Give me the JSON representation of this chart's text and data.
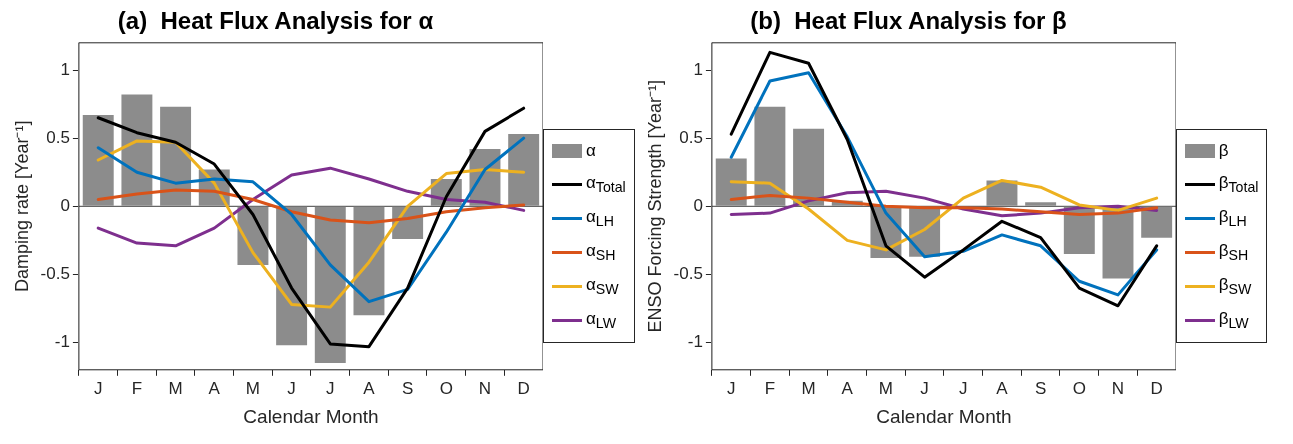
{
  "chart_data": [
    {
      "type": "bar",
      "title": "(a)  Heat Flux Analysis for α",
      "xlabel": "Calendar Month",
      "ylabel": "Damping rate [Year⁻¹]",
      "categories": [
        "J",
        "F",
        "M",
        "A",
        "M",
        "J",
        "J",
        "A",
        "S",
        "O",
        "N",
        "D"
      ],
      "series": [
        {
          "name": "α",
          "color": "#8c8c8c",
          "values": [
            0.67,
            0.82,
            0.73,
            0.27,
            -0.43,
            -1.02,
            -1.15,
            -0.8,
            -0.24,
            0.2,
            0.42,
            0.53
          ]
        },
        {
          "name": "α$_{Total}$",
          "type": "line",
          "color": "#000000",
          "values": [
            0.65,
            0.54,
            0.47,
            0.31,
            -0.06,
            -0.6,
            -1.01,
            -1.03,
            -0.6,
            0.07,
            0.55,
            0.72
          ]
        },
        {
          "name": "α$_{LH}$",
          "type": "line",
          "color": "#0072bd",
          "values": [
            0.43,
            0.25,
            0.17,
            0.2,
            0.18,
            -0.06,
            -0.43,
            -0.7,
            -0.61,
            -0.19,
            0.27,
            0.5
          ]
        },
        {
          "name": "α$_{SH}$",
          "type": "line",
          "color": "#d95319",
          "values": [
            0.05,
            0.09,
            0.12,
            0.11,
            0.05,
            -0.04,
            -0.1,
            -0.12,
            -0.09,
            -0.04,
            -0.01,
            0.01
          ]
        },
        {
          "name": "α$_{SW}$",
          "type": "line",
          "color": "#edb120",
          "values": [
            0.34,
            0.48,
            0.47,
            0.17,
            -0.34,
            -0.72,
            -0.74,
            -0.41,
            0.0,
            0.24,
            0.27,
            0.25
          ]
        },
        {
          "name": "α$_{LW}$",
          "type": "line",
          "color": "#7e2f8e",
          "values": [
            -0.16,
            -0.27,
            -0.29,
            -0.16,
            0.05,
            0.23,
            0.28,
            0.2,
            0.11,
            0.05,
            0.03,
            -0.03
          ]
        }
      ],
      "ylim": [
        -1.2,
        1.2
      ],
      "yticks": [
        -1,
        -0.5,
        0,
        0.5,
        1
      ],
      "ref_lines": [
        {
          "axis": "y",
          "value": 0,
          "color": "#404040"
        }
      ],
      "legend": "right"
    },
    {
      "type": "bar",
      "title": "(b)  Heat Flux Analysis for β",
      "xlabel": "Calendar Month",
      "ylabel": "ENSO Forcing Strength [Year⁻¹]",
      "categories": [
        "J",
        "F",
        "M",
        "A",
        "M",
        "J",
        "J",
        "A",
        "S",
        "O",
        "N",
        "D"
      ],
      "series": [
        {
          "name": "β",
          "color": "#8c8c8c",
          "values": [
            0.35,
            0.73,
            0.57,
            0.04,
            -0.38,
            -0.37,
            null,
            0.19,
            0.03,
            -0.35,
            -0.53,
            -0.23
          ]
        },
        {
          "name": "β$_{Total}$",
          "type": "line",
          "color": "#000000",
          "values": [
            0.53,
            1.13,
            1.05,
            0.49,
            -0.29,
            -0.52,
            -0.32,
            -0.11,
            -0.23,
            -0.6,
            -0.73,
            -0.29
          ]
        },
        {
          "name": "β$_{LH}$",
          "type": "line",
          "color": "#0072bd",
          "values": [
            0.36,
            0.92,
            0.98,
            0.51,
            -0.05,
            -0.37,
            -0.33,
            -0.21,
            -0.29,
            -0.55,
            -0.65,
            -0.32
          ]
        },
        {
          "name": "β$_{SH}$",
          "type": "line",
          "color": "#d95319",
          "values": [
            0.05,
            0.08,
            0.06,
            0.03,
            0.0,
            -0.01,
            -0.01,
            -0.02,
            -0.04,
            -0.06,
            -0.05,
            -0.01
          ]
        },
        {
          "name": "β$_{SW}$",
          "type": "line",
          "color": "#edb120",
          "values": [
            0.18,
            0.17,
            -0.02,
            -0.25,
            -0.32,
            -0.17,
            0.06,
            0.19,
            0.14,
            0.01,
            -0.03,
            0.06
          ]
        },
        {
          "name": "β$_{LW}$",
          "type": "line",
          "color": "#7e2f8e",
          "values": [
            -0.06,
            -0.05,
            0.04,
            0.1,
            0.11,
            0.06,
            -0.02,
            -0.07,
            -0.05,
            -0.01,
            0.0,
            -0.03
          ]
        }
      ],
      "ylim": [
        -1.2,
        1.2
      ],
      "yticks": [
        -1,
        -0.5,
        0,
        0.5,
        1
      ],
      "ref_lines": [
        {
          "axis": "y",
          "value": 0,
          "color": "#404040"
        }
      ],
      "legend": "right"
    }
  ]
}
